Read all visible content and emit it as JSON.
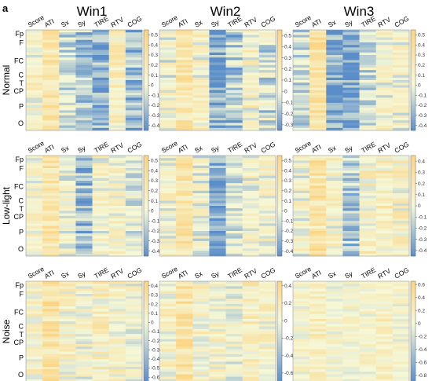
{
  "figure": {
    "panel_label": "a",
    "window_titles": [
      "Win1",
      "Win2",
      "Win3"
    ],
    "condition_titles": [
      "Normal",
      "Low-light",
      "Noise"
    ],
    "column_labels": [
      "Score",
      "ATI",
      "Sx",
      "Sy",
      "TIRE",
      "RTV",
      "COG"
    ],
    "row_labels": [
      "Fp",
      "F",
      "FC",
      "C",
      "T",
      "CP",
      "P",
      "O"
    ]
  },
  "colors": {
    "low": "#5b8ec9",
    "mid": "#f5f8d8",
    "high": "#fbd585"
  },
  "chart_data": [
    {
      "type": "heatmap",
      "condition": "Normal",
      "window": "Win1",
      "colorbar_ticks": [
        0.5,
        0.4,
        0.3,
        0.2,
        0.1,
        0,
        -0.1,
        -0.2,
        -0.3,
        -0.4
      ],
      "colorbar_range": [
        -0.45,
        0.55
      ],
      "column_means": [
        0.1,
        0.3,
        -0.1,
        -0.2,
        -0.3,
        0.15,
        -0.25
      ]
    },
    {
      "type": "heatmap",
      "condition": "Normal",
      "window": "Win2",
      "colorbar_ticks": [
        0.5,
        0.4,
        0.3,
        0.2,
        0.1,
        0,
        -0.1,
        -0.2,
        -0.3
      ],
      "colorbar_range": [
        -0.35,
        0.55
      ],
      "column_means": [
        0.05,
        0.3,
        0.1,
        -0.3,
        -0.15,
        0.1,
        -0.05
      ]
    },
    {
      "type": "heatmap",
      "condition": "Normal",
      "window": "Win3",
      "colorbar_ticks": [
        0.5,
        0.4,
        0.3,
        0.2,
        0.1,
        0,
        -0.1,
        -0.2,
        -0.3,
        -0.4
      ],
      "colorbar_range": [
        -0.45,
        0.55
      ],
      "column_means": [
        -0.1,
        0.35,
        -0.35,
        -0.35,
        -0.1,
        0.05,
        0.05
      ]
    },
    {
      "type": "heatmap",
      "condition": "Low-light",
      "window": "Win1",
      "colorbar_ticks": [
        0.5,
        0.4,
        0.3,
        0.2,
        0.1,
        0,
        -0.1,
        -0.2,
        -0.3,
        -0.4
      ],
      "colorbar_range": [
        -0.45,
        0.55
      ],
      "column_means": [
        0.05,
        0.3,
        0.0,
        -0.25,
        0.05,
        0.1,
        -0.05
      ]
    },
    {
      "type": "heatmap",
      "condition": "Low-light",
      "window": "Win2",
      "colorbar_ticks": [
        0.5,
        0.4,
        0.3,
        0.2,
        0.1,
        0,
        -0.1,
        -0.2,
        -0.3,
        -0.4
      ],
      "colorbar_range": [
        -0.45,
        0.55
      ],
      "column_means": [
        0.05,
        0.3,
        0.0,
        -0.35,
        -0.1,
        0.05,
        0.05
      ]
    },
    {
      "type": "heatmap",
      "condition": "Low-light",
      "window": "Win3",
      "colorbar_ticks": [
        0.4,
        0.3,
        0.2,
        0.1,
        0,
        -0.1,
        -0.2,
        -0.3,
        -0.4
      ],
      "colorbar_range": [
        -0.45,
        0.45
      ],
      "column_means": [
        0.05,
        0.25,
        0.05,
        -0.2,
        0.1,
        0.15,
        0.1
      ]
    },
    {
      "type": "heatmap",
      "condition": "Noise",
      "window": "Win1",
      "colorbar_ticks": [
        0.4,
        0.3,
        0.2,
        0.1,
        0,
        -0.1,
        -0.2,
        -0.3,
        -0.4,
        -0.5,
        -0.6
      ],
      "colorbar_range": [
        -0.65,
        0.45
      ],
      "column_means": [
        0.05,
        0.3,
        0.05,
        0.0,
        0.1,
        0.05,
        0.0
      ]
    },
    {
      "type": "heatmap",
      "condition": "Noise",
      "window": "Win2",
      "colorbar_ticks": [
        0.4,
        0.2,
        0,
        -0.2,
        -0.4,
        -0.6
      ],
      "colorbar_range": [
        -0.7,
        0.45
      ],
      "column_means": [
        0.05,
        0.3,
        0.05,
        0.05,
        -0.05,
        0.1,
        0.05
      ]
    },
    {
      "type": "heatmap",
      "condition": "Noise",
      "window": "Win3",
      "colorbar_ticks": [
        0.6,
        0.4,
        0.2,
        0,
        -0.2,
        -0.4,
        -0.6,
        -0.8
      ],
      "colorbar_range": [
        -0.9,
        0.65
      ],
      "column_means": [
        0.05,
        0.2,
        0.05,
        0.05,
        0.05,
        0.15,
        0.05
      ]
    }
  ]
}
